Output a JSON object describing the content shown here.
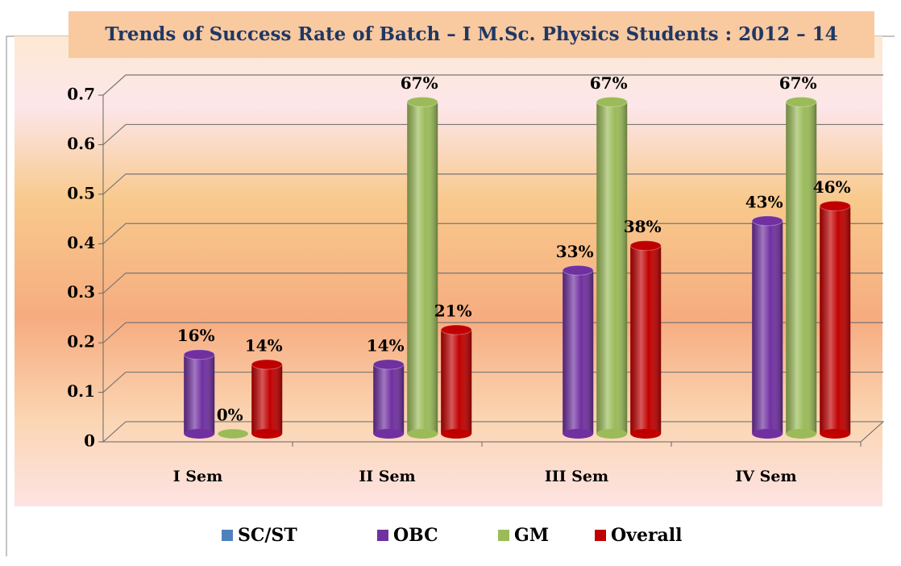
{
  "chart_data": {
    "type": "bar3d",
    "title": "Trends of Success Rate of Batch – I  M.Sc. Physics Students : 2012 – 14",
    "categories": [
      "I Sem",
      "II Sem",
      "III Sem",
      "IV Sem"
    ],
    "series": [
      {
        "name": "SC/ST",
        "color": "#4f81bd",
        "values": [
          null,
          null,
          null,
          null
        ]
      },
      {
        "name": "OBC",
        "color": "#7030a0",
        "values": [
          0.16,
          0.14,
          0.33,
          0.43
        ],
        "value_labels": [
          "16%",
          "14%",
          "33%",
          "43%"
        ]
      },
      {
        "name": "GM",
        "color": "#9bbb59",
        "values": [
          0,
          0.67,
          0.67,
          0.67
        ],
        "value_labels": [
          "0%",
          "67%",
          "67%",
          "67%"
        ]
      },
      {
        "name": "Overall",
        "color": "#c00000",
        "values": [
          0.14,
          0.21,
          0.38,
          0.46
        ],
        "value_labels": [
          "14%",
          "21%",
          "38%",
          "46%"
        ]
      }
    ],
    "ylim": [
      0,
      0.7
    ],
    "yticks": [
      0,
      0.1,
      0.2,
      0.3,
      0.4,
      0.5,
      0.6,
      0.7
    ],
    "grid": true,
    "legend": "bottom"
  }
}
